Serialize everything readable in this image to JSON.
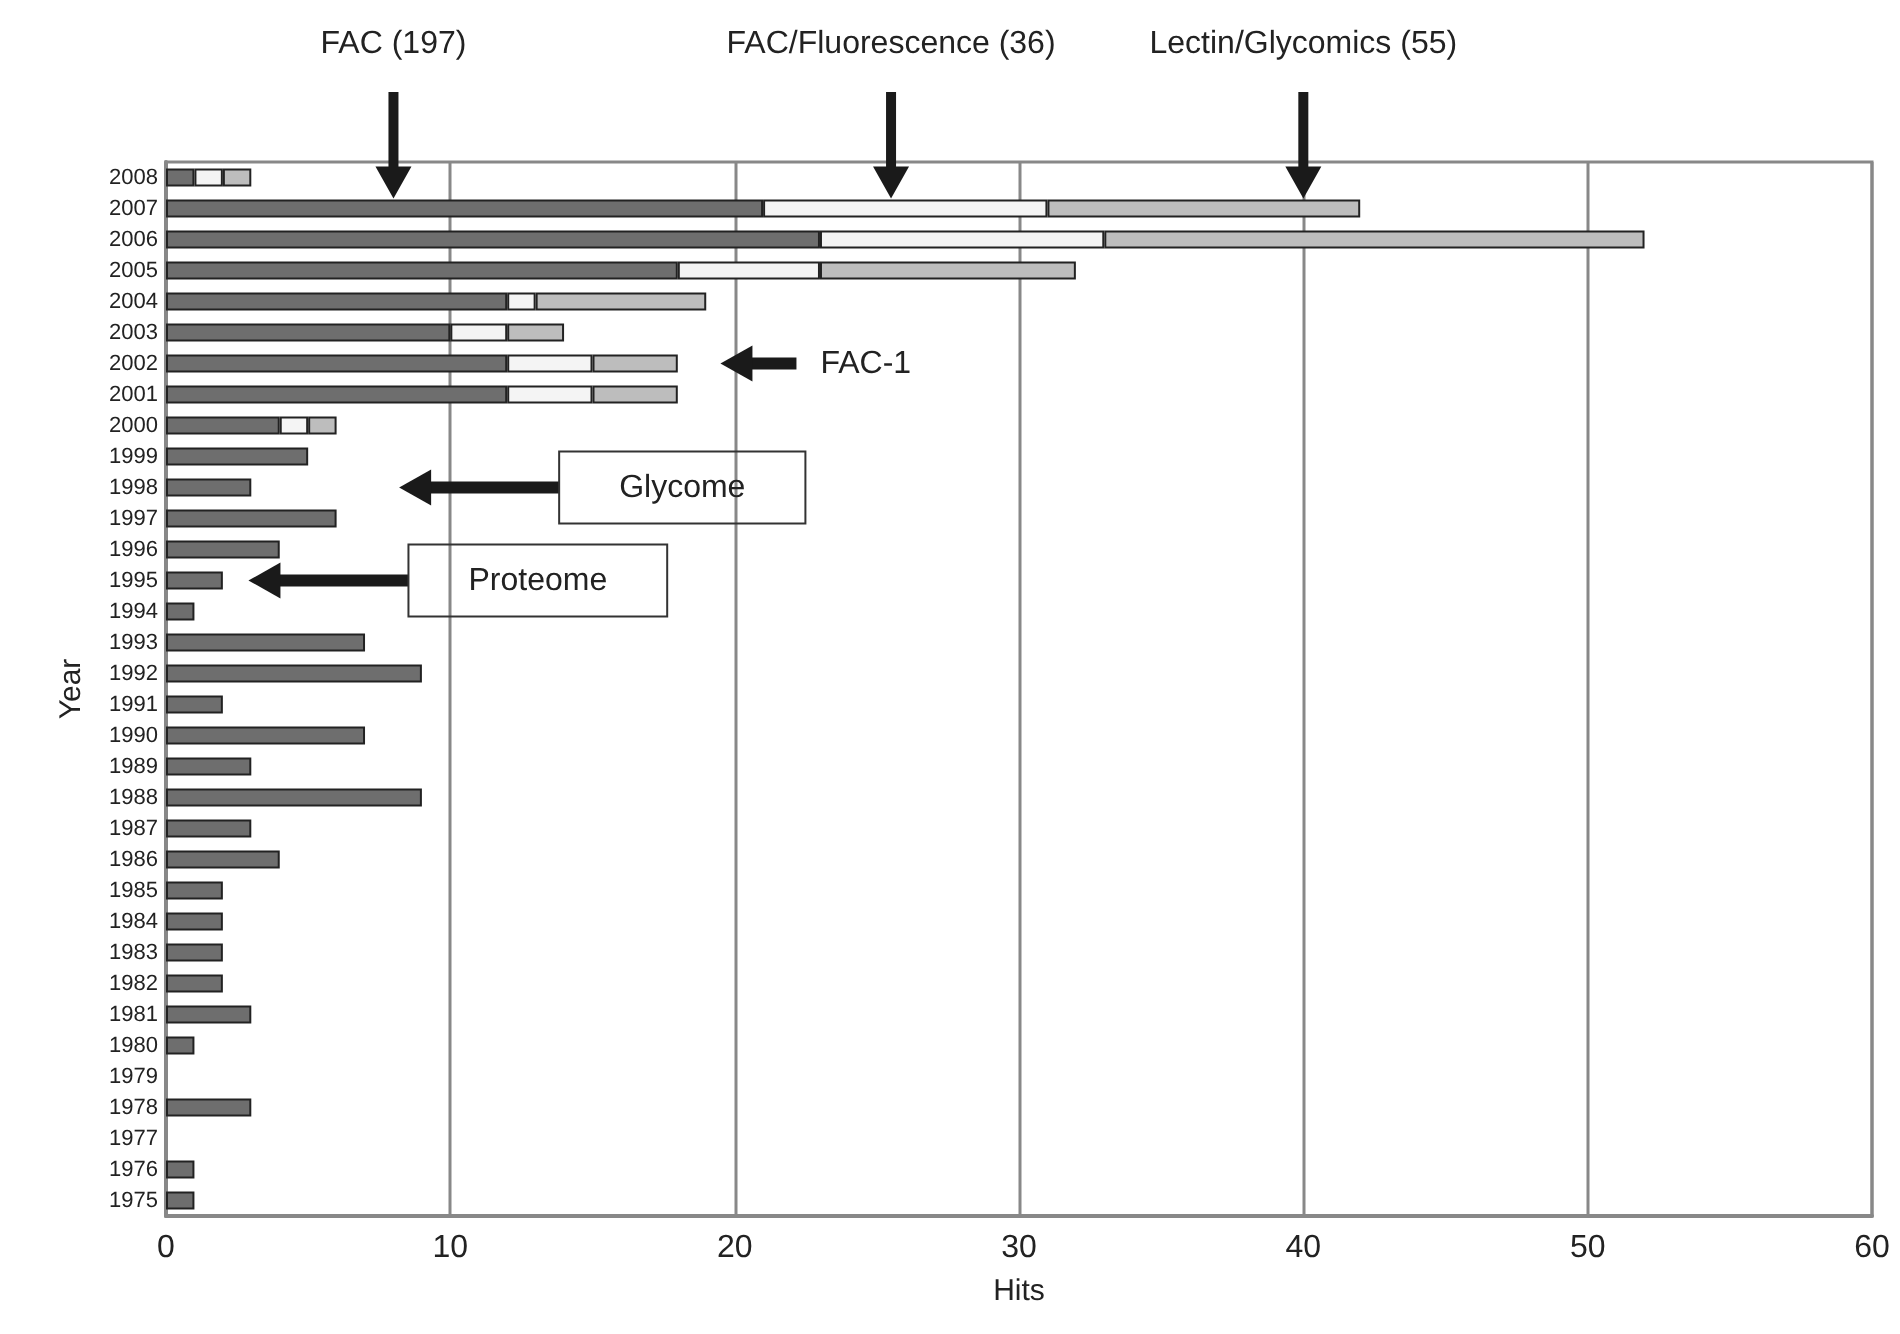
{
  "chart_data": {
    "type": "bar",
    "orientation": "horizontal",
    "stacked": true,
    "xlabel": "Hits",
    "ylabel": "Year",
    "categories": [
      "2008",
      "2007",
      "2006",
      "2005",
      "2004",
      "2003",
      "2002",
      "2001",
      "2000",
      "1999",
      "1998",
      "1997",
      "1996",
      "1995",
      "1994",
      "1993",
      "1992",
      "1991",
      "1990",
      "1989",
      "1988",
      "1987",
      "1986",
      "1985",
      "1984",
      "1983",
      "1982",
      "1981",
      "1980",
      "1979",
      "1978",
      "1977",
      "1976",
      "1975"
    ],
    "series": [
      {
        "color": "#6e6e6e",
        "values": [
          1,
          21,
          23,
          18,
          12,
          10,
          12,
          12,
          4,
          5,
          3,
          6,
          4,
          2,
          1,
          7,
          9,
          2,
          7,
          3,
          9,
          3,
          4,
          2,
          2,
          2,
          2,
          3,
          1,
          0,
          3,
          0,
          1,
          1
        ]
      },
      {
        "color": "#f4f4f4",
        "values": [
          1,
          10,
          10,
          5,
          1,
          2,
          3,
          3,
          1,
          0,
          0,
          0,
          0,
          0,
          0,
          0,
          0,
          0,
          0,
          0,
          0,
          0,
          0,
          0,
          0,
          0,
          0,
          0,
          0,
          0,
          0,
          0,
          0,
          0
        ]
      },
      {
        "color": "#bdbdbd",
        "values": [
          1,
          11,
          19,
          9,
          6,
          2,
          3,
          3,
          1,
          0,
          0,
          0,
          0,
          0,
          0,
          0,
          0,
          0,
          0,
          0,
          0,
          0,
          0,
          0,
          0,
          0,
          0,
          0,
          0,
          0,
          0,
          0,
          0,
          0
        ]
      }
    ],
    "xlim": [
      0,
      60
    ],
    "xticks": [
      0,
      10,
      20,
      30,
      40,
      50,
      60
    ],
    "grid": "x",
    "annotations": [
      "FAC (197)",
      "FAC/Fluorescence (36)",
      "Lectin/Glycomics (55)",
      "FAC-1",
      "Glycome",
      "Proteome"
    ]
  }
}
